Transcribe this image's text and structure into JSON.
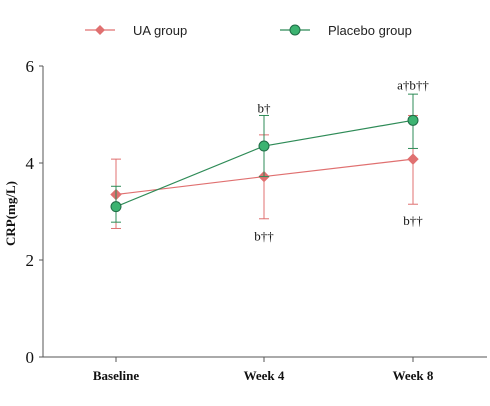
{
  "chart_data": {
    "type": "line",
    "categories": [
      "Baseline",
      "Week 4",
      "Week 8"
    ],
    "ylabel": "CRP(mg/L)",
    "ylim": [
      0,
      6
    ],
    "yticks": [
      0,
      2,
      4,
      6
    ],
    "grid": false,
    "legend_position": "top",
    "series": [
      {
        "name": "UA group",
        "color": "#e07070",
        "marker": "diamond",
        "values": [
          3.35,
          3.72,
          4.08
        ],
        "err_low": [
          2.65,
          2.85,
          3.15
        ],
        "err_high": [
          4.08,
          4.58,
          4.98
        ]
      },
      {
        "name": "Placebo group",
        "color": "#2e8b57",
        "marker": "circle",
        "values": [
          3.1,
          4.35,
          4.88
        ],
        "err_low": [
          2.78,
          3.72,
          4.3
        ],
        "err_high": [
          3.52,
          4.98,
          5.42
        ]
      }
    ],
    "annotations": [
      {
        "category": "Week 4",
        "text": "b†",
        "y": 5.12
      },
      {
        "category": "Week 4",
        "text": "b††",
        "y": 2.48
      },
      {
        "category": "Week 8",
        "text": "a†b††",
        "y": 5.6
      },
      {
        "category": "Week 8",
        "text": "b††",
        "y": 2.8
      }
    ]
  }
}
